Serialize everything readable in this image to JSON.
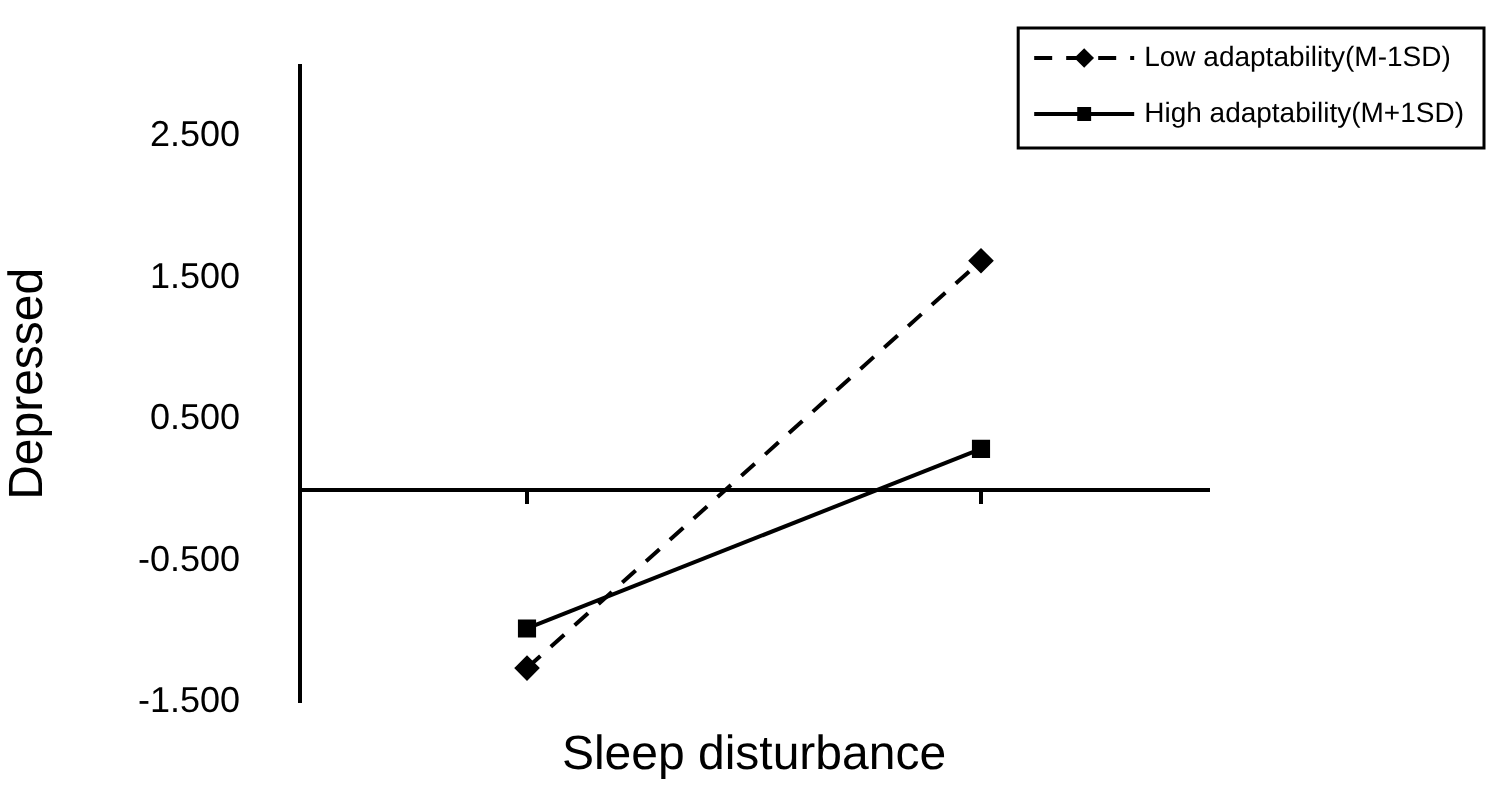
{
  "chart_data": {
    "type": "line",
    "xlabel": "Sleep disturbance",
    "ylabel": "Depressed",
    "categories": [
      null,
      null
    ],
    "series": [
      {
        "name": "Low adaptability(M-1SD)",
        "color": "#000000",
        "values": [
          -1.26,
          1.62
        ],
        "marker": "diamond",
        "line_style": "dashed"
      },
      {
        "name": "High adaptability(M+1SD)",
        "color": "#000000",
        "values": [
          -0.98,
          0.29
        ],
        "marker": "square",
        "line_style": "solid"
      }
    ],
    "ylim": [
      -1.5,
      3.0
    ],
    "yticks": [
      {
        "value": -1.5,
        "label": "-1.500"
      },
      {
        "value": -0.5,
        "label": "-0.500"
      },
      {
        "value": 0.5,
        "label": "0.500"
      },
      {
        "value": 1.5,
        "label": "1.500"
      },
      {
        "value": 2.5,
        "label": "2.500"
      }
    ],
    "grid": false,
    "legend": "top right",
    "tick_labels": "y"
  }
}
